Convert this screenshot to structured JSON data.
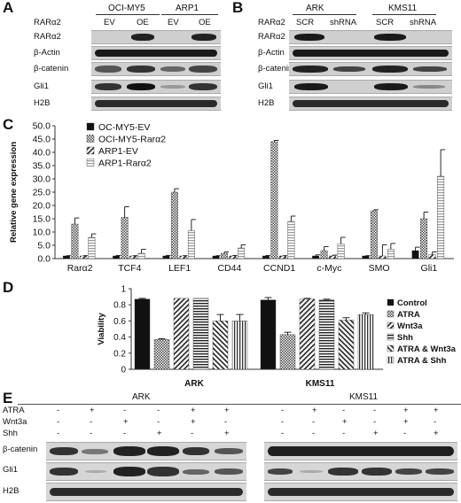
{
  "panelA": {
    "letter": "A",
    "row_header_label": "RARα2",
    "cell_lines": [
      "OCI-MY5",
      "ARP1"
    ],
    "conditions": [
      "EV",
      "OE",
      "EV",
      "OE"
    ],
    "rows": [
      "RARα2",
      "β-Actin",
      "β-catenin",
      "Gli1",
      "H2B"
    ]
  },
  "panelB": {
    "letter": "B",
    "row_header_label": "RARα2",
    "cell_lines": [
      "ARK",
      "KMS11"
    ],
    "conditions": [
      "SCR",
      "shRNA",
      "SCR",
      "shRNA"
    ],
    "rows": [
      "RARα2",
      "β-Actin",
      "β-catenin",
      "Gli1",
      "H2B"
    ]
  },
  "panelC": {
    "letter": "C",
    "legend": [
      "OC-MY5-EV",
      "OCI-MY5-Rarα2",
      "ARP1-EV",
      "ARP1-Rarα2"
    ]
  },
  "panelD": {
    "letter": "D",
    "legend": [
      "Control",
      "ATRA",
      "Wnt3a",
      "Shh",
      "ATRA & Wnt3a",
      "ATRA & Shh"
    ]
  },
  "panelE": {
    "letter": "E",
    "groups": [
      "ARK",
      "KMS11"
    ],
    "treatments": [
      "ATRA",
      "Wnt3a",
      "Shh"
    ],
    "signs": [
      [
        "-",
        "+",
        "-",
        "-",
        "+",
        "+",
        "-",
        "+",
        "-",
        "-",
        "+",
        "+"
      ],
      [
        "-",
        "-",
        "+",
        "-",
        "+",
        "-",
        "-",
        "-",
        "+",
        "-",
        "+",
        "-"
      ],
      [
        "-",
        "-",
        "-",
        "+",
        "-",
        "+",
        "-",
        "-",
        "-",
        "+",
        "-",
        "+"
      ]
    ],
    "rows": [
      "β-catenin",
      "Gli1",
      "H2B"
    ]
  },
  "chart_data": [
    {
      "type": "bar",
      "panel": "C",
      "ylabel": "Relative gene expression",
      "ylim": [
        0,
        50
      ],
      "yticks": [
        "0.0",
        "5.0",
        "10.0",
        "15.0",
        "20.0",
        "25.0",
        "30.0",
        "35.0",
        "40.0",
        "45.0",
        "50.0"
      ],
      "categories": [
        "Rarα2",
        "TCF4",
        "LEF1",
        "CD44",
        "CCND1",
        "c-Myc",
        "SMO",
        "Gli1"
      ],
      "series": [
        {
          "name": "OC-MY5-EV",
          "values": [
            1.0,
            1.0,
            1.0,
            1.0,
            1.0,
            1.0,
            1.0,
            3.0
          ],
          "errors": [
            0.1,
            0.2,
            0.2,
            0.1,
            0.2,
            0.4,
            0.1,
            1.3
          ]
        },
        {
          "name": "OCI-MY5-Rarα2",
          "values": [
            13.0,
            15.5,
            25.0,
            2.0,
            44.0,
            3.0,
            18.0,
            15.0
          ],
          "errors": [
            2.3,
            4.0,
            1.3,
            0.5,
            0.5,
            1.5,
            0.4,
            2.5
          ]
        },
        {
          "name": "ARP1-EV",
          "values": [
            1.0,
            1.0,
            1.0,
            1.0,
            1.0,
            1.0,
            1.0,
            1.5
          ],
          "errors": [
            0.1,
            0.1,
            0.1,
            0.2,
            0.1,
            0.3,
            4.2,
            1.0
          ]
        },
        {
          "name": "ARP1-Rarα2",
          "values": [
            8.0,
            2.0,
            10.5,
            4.0,
            14.0,
            5.5,
            3.5,
            31.0
          ],
          "errors": [
            1.3,
            1.5,
            4.2,
            1.2,
            2.0,
            2.5,
            2.2,
            10.0
          ]
        }
      ]
    },
    {
      "type": "bar",
      "panel": "D",
      "ylabel": "Viability",
      "ylim": [
        0,
        1
      ],
      "yticks": [
        "0",
        "0.2",
        "0.4",
        "0.6",
        "0.8",
        "1"
      ],
      "categories": [
        "ARK",
        "KMS11"
      ],
      "series": [
        {
          "name": "Control",
          "values": [
            0.87,
            0.86
          ],
          "errors": [
            0.01,
            0.03
          ]
        },
        {
          "name": "ATRA",
          "values": [
            0.37,
            0.43
          ],
          "errors": [
            0.01,
            0.03
          ]
        },
        {
          "name": "Wnt3a",
          "values": [
            0.88,
            0.87
          ],
          "errors": [
            0.0,
            0.01
          ]
        },
        {
          "name": "Shh",
          "values": [
            0.88,
            0.86
          ],
          "errors": [
            0.0,
            0.01
          ]
        },
        {
          "name": "ATRA & Wnt3a",
          "values": [
            0.6,
            0.61
          ],
          "errors": [
            0.08,
            0.03
          ]
        },
        {
          "name": "ATRA & Shh",
          "values": [
            0.6,
            0.68
          ],
          "errors": [
            0.08,
            0.02
          ]
        }
      ]
    }
  ]
}
